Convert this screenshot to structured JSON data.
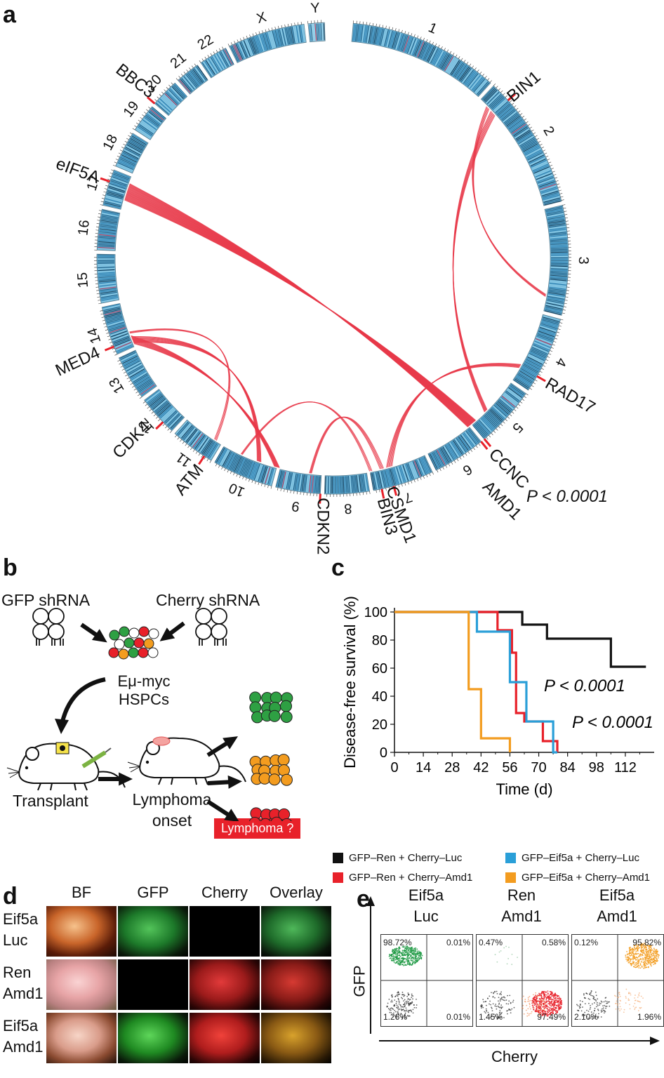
{
  "panel_labels": {
    "a": "a",
    "b": "b",
    "c": "c",
    "d": "d",
    "e": "e"
  },
  "panel_a": {
    "chromosomes": [
      "1",
      "2",
      "3",
      "4",
      "5",
      "6",
      "7",
      "8",
      "9",
      "10",
      "11",
      "12",
      "13",
      "14",
      "15",
      "16",
      "17",
      "18",
      "19",
      "20",
      "21",
      "22",
      "X",
      "Y"
    ],
    "genes": [
      "BIN1",
      "RAD17",
      "CCNC",
      "AMD1",
      "CSMD1",
      "BIN3",
      "CDKN2",
      "ATM",
      "CDK4",
      "MED4",
      "eIF5A",
      "BBC3"
    ],
    "p_value": "P < 0.0001",
    "colors": {
      "ideogram": "#4a9ac4",
      "link": "#e8394a",
      "tick": "#e8212a"
    }
  },
  "panel_b": {
    "gfp_shrna": "GFP shRNA",
    "cherry_shrna": "Cherry shRNA",
    "hspc_line1": "Eμ-myc",
    "hspc_line2": "HSPCs",
    "transplant": "Transplant",
    "onset_line1": "Lymphoma",
    "onset_line2": "onset",
    "lymphoma_q": "Lymphoma ?",
    "colors": {
      "green": "#2ea043",
      "orange": "#f39c1f",
      "red": "#e8212a"
    }
  },
  "panel_c": {
    "ylabel": "Disease-free survival (%)",
    "xlabel": "Time (d)",
    "p1": "P < 0.0001",
    "p2": "P < 0.0001",
    "legend": [
      {
        "label": "GFP–Ren + Cherry–Luc",
        "color": "#111111"
      },
      {
        "label": "GFP–Ren + Cherry–Amd1",
        "color": "#e8212a"
      },
      {
        "label": "GFP–Eif5a + Cherry–Luc",
        "color": "#2a9fd8"
      },
      {
        "label": "GFP–Eif5a + Cherry–Amd1",
        "color": "#f39c1f"
      }
    ]
  },
  "chart_data": {
    "type": "line",
    "xlabel": "Time (d)",
    "ylabel": "Disease-free survival (%)",
    "xlim": [
      0,
      126
    ],
    "ylim": [
      0,
      100
    ],
    "xticks": [
      0,
      14,
      28,
      42,
      56,
      70,
      84,
      98,
      112
    ],
    "yticks": [
      0,
      20,
      40,
      60,
      80,
      100
    ],
    "series": [
      {
        "name": "GFP–Ren + Cherry–Luc",
        "color": "#111111",
        "x": [
          0,
          62,
          62,
          74,
          74,
          105,
          105,
          122
        ],
        "y": [
          100,
          100,
          91,
          91,
          81,
          81,
          61,
          61
        ]
      },
      {
        "name": "GFP–Ren + Cherry–Amd1",
        "color": "#e8212a",
        "x": [
          0,
          50,
          50,
          57,
          57,
          59,
          59,
          63,
          63,
          66,
          66,
          72,
          72,
          77,
          77,
          79,
          79
        ],
        "y": [
          100,
          100,
          87,
          87,
          71,
          71,
          28,
          28,
          22,
          22,
          22,
          22,
          8,
          8,
          8,
          8,
          0
        ]
      },
      {
        "name": "GFP–Eif5a + Cherry–Luc",
        "color": "#2a9fd8",
        "x": [
          0,
          40,
          40,
          48,
          48,
          56,
          56,
          64,
          64,
          77,
          77,
          79
        ],
        "y": [
          100,
          100,
          86,
          86,
          86,
          86,
          50,
          50,
          22,
          22,
          0,
          0
        ]
      },
      {
        "name": "GFP–Eif5a + Cherry–Amd1",
        "color": "#f39c1f",
        "x": [
          0,
          36,
          36,
          42,
          42,
          56,
          56
        ],
        "y": [
          100,
          100,
          45,
          45,
          10,
          10,
          0
        ]
      }
    ]
  },
  "panel_d": {
    "columns": [
      "BF",
      "GFP",
      "Cherry",
      "Overlay"
    ],
    "rows": [
      {
        "line1": "Eif5a",
        "line2": "Luc"
      },
      {
        "line1": "Ren",
        "line2": "Amd1"
      },
      {
        "line1": "Eif5a",
        "line2": "Amd1"
      }
    ]
  },
  "panel_e": {
    "ylabel": "GFP",
    "xlabel": "Cherry",
    "plots": [
      {
        "line1": "Eif5a",
        "line2": "Luc",
        "q": [
          "98.72%",
          "0.01%",
          "1.26%",
          "0.01%"
        ]
      },
      {
        "line1": "Ren",
        "line2": "Amd1",
        "q": [
          "0.47%",
          "0.58%",
          "1.45%",
          "97.49%"
        ]
      },
      {
        "line1": "Eif5a",
        "line2": "Amd1",
        "q": [
          "0.12%",
          "95.82%",
          "2.10%",
          "1.96%"
        ]
      }
    ]
  }
}
